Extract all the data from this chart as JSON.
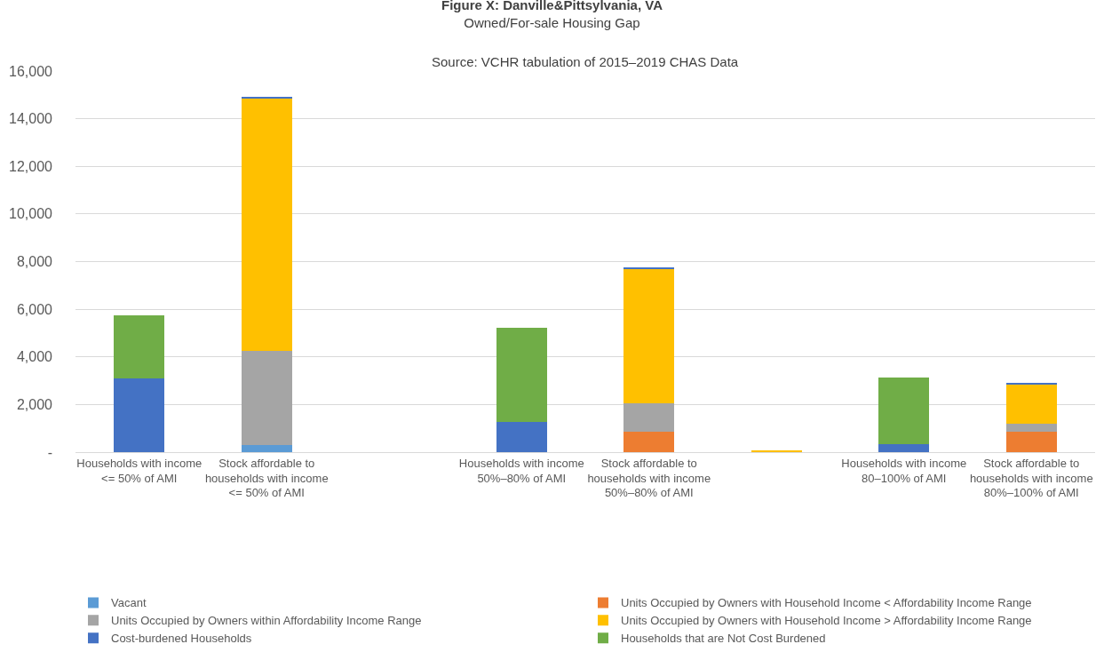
{
  "chart_data": {
    "type": "bar",
    "stacked": true,
    "title": "Figure X: Danville&Pittsylvania, VA",
    "subtitle": "Owned/For-sale Housing Gap",
    "annotations": [
      "Source: VCHR tabulation of 2015–2019 CHAS Data"
    ],
    "categories": [
      "Households with income <= 50% of AMI",
      "Stock affordable to households with income <= 50% of AMI",
      null,
      "Households with income 50%–80% of AMI",
      "Stock affordable to households with income 50%–80% of AMI",
      null,
      "Households with income 80–100% of AMI",
      "Stock affordable to households with income 80%–100% of AMI"
    ],
    "series": [
      {
        "name": "Vacant",
        "color": "#5b9bd5",
        "values": [
          null,
          315,
          null,
          null,
          null,
          null,
          null,
          null
        ]
      },
      {
        "name": "Units Occupied by Owners with Household Income < Affordability Income Range",
        "color": "#ed7d31",
        "values": [
          null,
          null,
          null,
          null,
          875,
          null,
          null,
          875
        ]
      },
      {
        "name": "Units Occupied by Owners within Affordability Income Range",
        "color": "#a5a5a5",
        "values": [
          null,
          3955,
          null,
          null,
          1195,
          null,
          null,
          315
        ]
      },
      {
        "name": "Units Occupied by Owners with Household Income > Affordability Income Range",
        "color": "#ffc000",
        "values": [
          null,
          10610,
          null,
          null,
          5630,
          40,
          null,
          1680
        ]
      },
      {
        "name": "Cost-burdened Households",
        "color": "#4472c4",
        "values": [
          3080,
          50,
          null,
          1260,
          50,
          null,
          350,
          50
        ]
      },
      {
        "name": "Households that are Not Cost Burdened",
        "color": "#70ad47",
        "values": [
          2660,
          null,
          null,
          3960,
          null,
          null,
          2800,
          null
        ]
      }
    ],
    "ylim": [
      0,
      16000
    ],
    "yticks": [
      {
        "value": 0,
        "label": "-"
      },
      {
        "value": 2000,
        "label": "2,000"
      },
      {
        "value": 4000,
        "label": "4,000"
      },
      {
        "value": 6000,
        "label": "6,000"
      },
      {
        "value": 8000,
        "label": "8,000"
      },
      {
        "value": 10000,
        "label": "10,000"
      },
      {
        "value": 12000,
        "label": "12,000"
      },
      {
        "value": 14000,
        "label": "14,000"
      },
      {
        "value": 16000,
        "label": "16,000"
      }
    ],
    "grid": "y",
    "legend": "bottom"
  }
}
